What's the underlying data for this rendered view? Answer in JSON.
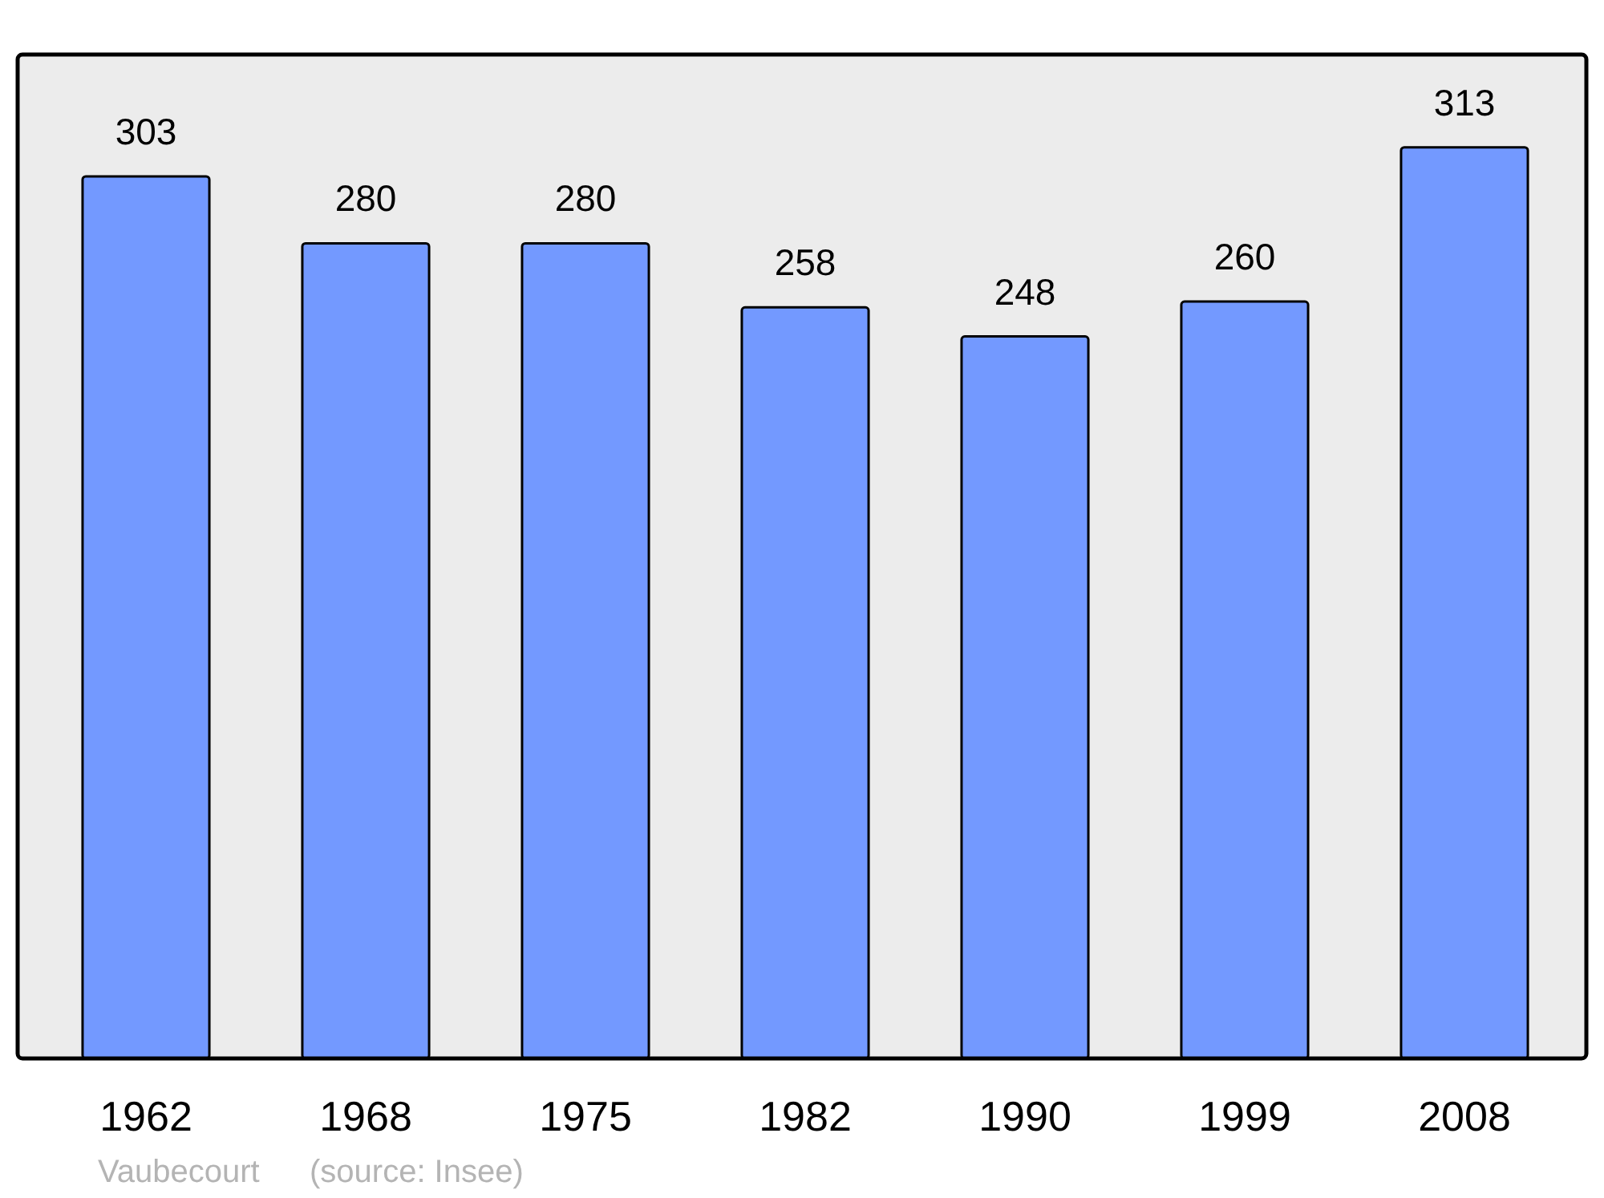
{
  "chart_data": {
    "type": "bar",
    "categories": [
      "1962",
      "1968",
      "1975",
      "1982",
      "1990",
      "1999",
      "2008"
    ],
    "values": [
      303,
      280,
      280,
      258,
      248,
      260,
      313
    ],
    "color": "#7399ff",
    "data_labels": true,
    "annotations": [
      "Vaubecourt",
      "(source: Insee)"
    ]
  }
}
